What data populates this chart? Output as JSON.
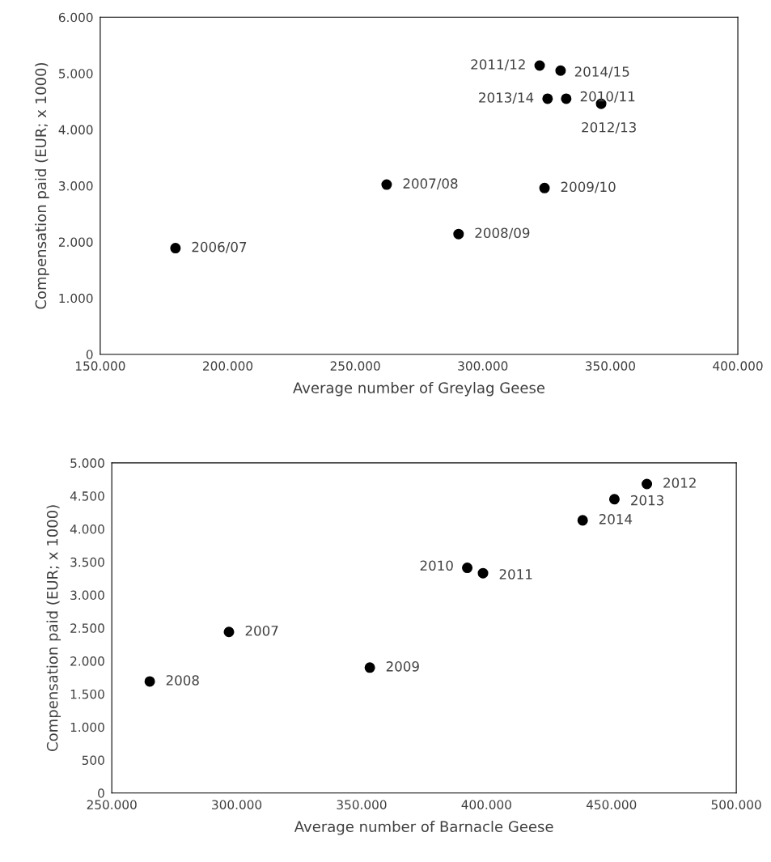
{
  "chart_data": [
    {
      "type": "scatter",
      "xlabel": "Average number of Greylag Geese",
      "ylabel": "Compensation paid (EUR; x 1000)",
      "x": [
        179500,
        262300,
        290500,
        324200,
        332700,
        322300,
        346400,
        325400,
        330500
      ],
      "series": [
        {
          "color": "#000000",
          "values": [
            1890,
            3020,
            2140,
            2960,
            4550,
            5140,
            4460,
            4550,
            5050
          ]
        }
      ],
      "marker": "circle",
      "grid": false,
      "legend": false,
      "xlim": [
        150000,
        400000
      ],
      "xticks": [
        {
          "value": 150000,
          "label": "150.000"
        },
        {
          "value": 200000,
          "label": "200.000"
        },
        {
          "value": 250000,
          "label": "250.000"
        },
        {
          "value": 300000,
          "label": "300.000"
        },
        {
          "value": 350000,
          "label": "350.000"
        },
        {
          "value": 400000,
          "label": "400.000"
        }
      ],
      "ylim": [
        0,
        6000
      ],
      "yticks": [
        0,
        {
          "value": 1000,
          "label": "1.000"
        },
        {
          "value": 2000,
          "label": "2.000"
        },
        {
          "value": 3000,
          "label": "3.000"
        },
        {
          "value": 4000,
          "label": "4.000"
        },
        {
          "value": 5000,
          "label": "5.000"
        },
        {
          "value": 6000,
          "label": "6.000"
        }
      ],
      "annotations": [
        {
          "text": "2006/07",
          "x": 179500,
          "y": 1890
        },
        {
          "text": "2007/08",
          "x": 262300,
          "y": 3020
        },
        {
          "text": "2008/09",
          "x": 290500,
          "y": 2140
        },
        {
          "text": "2009/10",
          "x": 324200,
          "y": 2960
        },
        {
          "text": "2010/11",
          "x": 332700,
          "y": 4550
        },
        {
          "text": "2011/12",
          "x": 322300,
          "y": 5140
        },
        {
          "text": "2012/13",
          "x": 346400,
          "y": 4460
        },
        {
          "text": "2013/14",
          "x": 325400,
          "y": 4550
        },
        {
          "text": "2014/15",
          "x": 330500,
          "y": 5050
        }
      ]
    },
    {
      "type": "scatter",
      "xlabel": "Average number of Barnacle Geese",
      "ylabel": "Compensation paid (EUR; x 1000)",
      "x": [
        296900,
        265200,
        353300,
        392300,
        398600,
        464200,
        451200,
        438500
      ],
      "series": [
        {
          "color": "#000000",
          "values": [
            2440,
            1690,
            1900,
            3410,
            3330,
            4680,
            4450,
            4130
          ]
        }
      ],
      "marker": "circle",
      "grid": false,
      "legend": false,
      "xlim": [
        250000,
        500000
      ],
      "xticks": [
        {
          "value": 250000,
          "label": "250.000"
        },
        {
          "value": 300000,
          "label": "300.000"
        },
        {
          "value": 350000,
          "label": "350.000"
        },
        {
          "value": 400000,
          "label": "400.000"
        },
        {
          "value": 450000,
          "label": "450.000"
        },
        {
          "value": 500000,
          "label": "500.000"
        }
      ],
      "ylim": [
        0,
        5000
      ],
      "yticks": [
        0,
        500,
        {
          "value": 1000,
          "label": "1.000"
        },
        {
          "value": 1500,
          "label": "1.500"
        },
        {
          "value": 2000,
          "label": "2.000"
        },
        {
          "value": 2500,
          "label": "2.500"
        },
        {
          "value": 3000,
          "label": "3.000"
        },
        {
          "value": 3500,
          "label": "3.500"
        },
        {
          "value": 4000,
          "label": "4.000"
        },
        {
          "value": 4500,
          "label": "4.500"
        },
        {
          "value": 5000,
          "label": "5.000"
        }
      ],
      "annotations": [
        {
          "text": "2007",
          "x": 296900,
          "y": 2440
        },
        {
          "text": "2008",
          "x": 265200,
          "y": 1690
        },
        {
          "text": "2009",
          "x": 353300,
          "y": 1900
        },
        {
          "text": "2010",
          "x": 392300,
          "y": 3410
        },
        {
          "text": "2011",
          "x": 398600,
          "y": 3330
        },
        {
          "text": "2012",
          "x": 464200,
          "y": 4680
        },
        {
          "text": "2013",
          "x": 451200,
          "y": 4450
        },
        {
          "text": "2014",
          "x": 438500,
          "y": 4130
        }
      ]
    }
  ]
}
